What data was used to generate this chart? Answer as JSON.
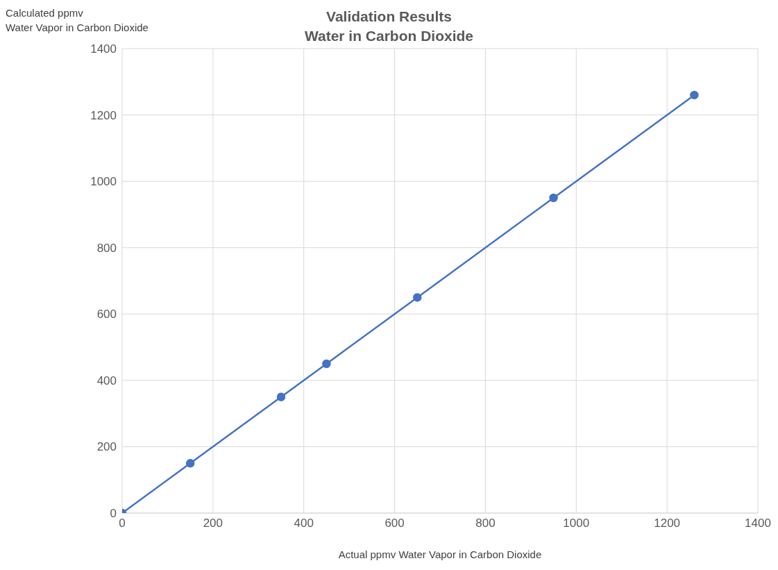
{
  "chart_data": {
    "type": "line",
    "title": "Validation Results",
    "subtitle": "Water in Carbon Dioxide",
    "xlabel": "Actual ppmv Water Vapor in Carbon Dioxide",
    "ylabel": "Calculated ppmv\nWater Vapor in Carbon Dioxide",
    "x": [
      0,
      150,
      350,
      450,
      650,
      950,
      1260
    ],
    "series": [
      {
        "color": "#4472c4",
        "values": [
          0,
          150,
          350,
          450,
          650,
          950,
          1260
        ]
      }
    ],
    "xlim": [
      0,
      1400
    ],
    "xticks": [
      0,
      200,
      400,
      600,
      800,
      1000,
      1200,
      1400
    ],
    "ylim": [
      0,
      1400
    ],
    "yticks": [
      0,
      200,
      400,
      600,
      800,
      1000,
      1200,
      1400
    ],
    "grid": true,
    "marker": "circle",
    "line_style": "solid"
  }
}
